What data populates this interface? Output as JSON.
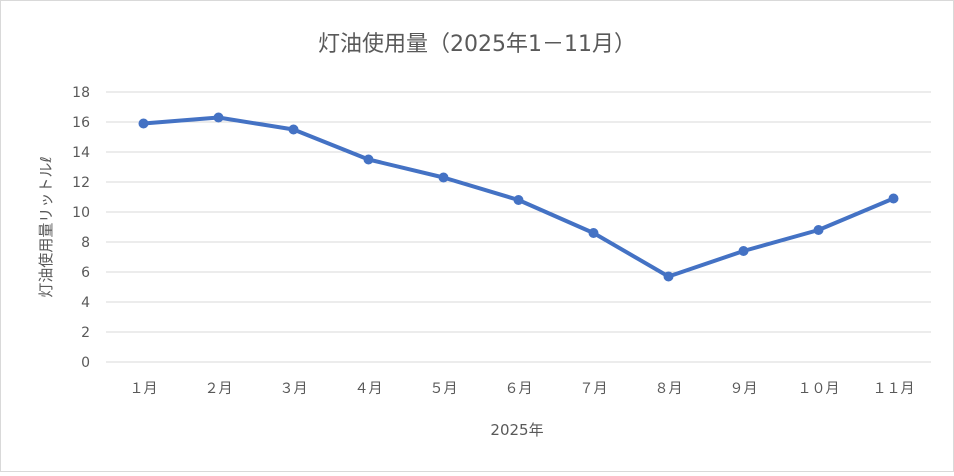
{
  "chart_data": {
    "type": "line",
    "title": "灯油使用量（2025年1－11月）",
    "xlabel": "2025年",
    "ylabel": "灯油使用量リットルℓ",
    "categories": [
      "１月",
      "２月",
      "３月",
      "４月",
      "５月",
      "６月",
      "７月",
      "８月",
      "９月",
      "１０月",
      "１１月"
    ],
    "series": [
      {
        "values": [
          15.9,
          16.3,
          15.5,
          13.5,
          12.3,
          10.8,
          8.6,
          5.7,
          7.4,
          8.8,
          10.9
        ]
      }
    ],
    "ylim": [
      0,
      18
    ],
    "yticks": [
      0,
      2,
      4,
      6,
      8,
      10,
      12,
      14,
      16,
      18
    ],
    "grid": true,
    "legend": "none",
    "colors": {
      "line": "#4472c4",
      "grid": "#d9d9d9",
      "text": "#595959"
    }
  }
}
